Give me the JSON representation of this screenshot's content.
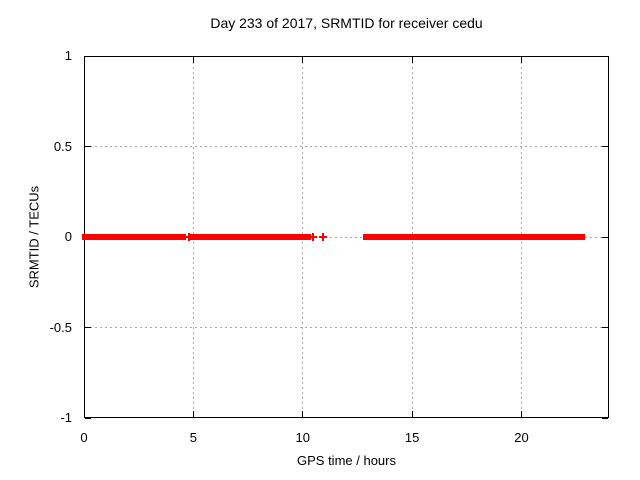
{
  "chart_data": {
    "type": "scatter",
    "title": "Day 233 of 2017, SRMTID for receiver cedu",
    "xlabel": "GPS time / hours",
    "ylabel": "SRMTID / TECUs",
    "xlim": [
      0,
      24
    ],
    "ylim": [
      -1,
      1
    ],
    "xticks": [
      0,
      5,
      10,
      15,
      20
    ],
    "xtick_labels": [
      "0",
      "5",
      "10",
      "15",
      "20"
    ],
    "yticks": [
      -1,
      -0.5,
      0,
      0.5,
      1
    ],
    "ytick_labels": [
      "-1",
      "-0.5",
      "0",
      "0.5",
      "1"
    ],
    "grid": true,
    "legend": "none",
    "marker": "plus",
    "series": [
      {
        "name": "SRMTID",
        "color": "#ff0000",
        "y_value": 0,
        "dense_segments_hours": [
          [
            0.0,
            4.56
          ],
          [
            4.95,
            10.28
          ],
          [
            12.85,
            22.81
          ]
        ],
        "isolated_points_hours": [
          4.78,
          10.45,
          10.91
        ]
      }
    ],
    "colors": {
      "background": "#ffffff",
      "border": "#000000",
      "grid": "#aaaaaa",
      "text": "#000000",
      "data": "#ff0000"
    }
  }
}
